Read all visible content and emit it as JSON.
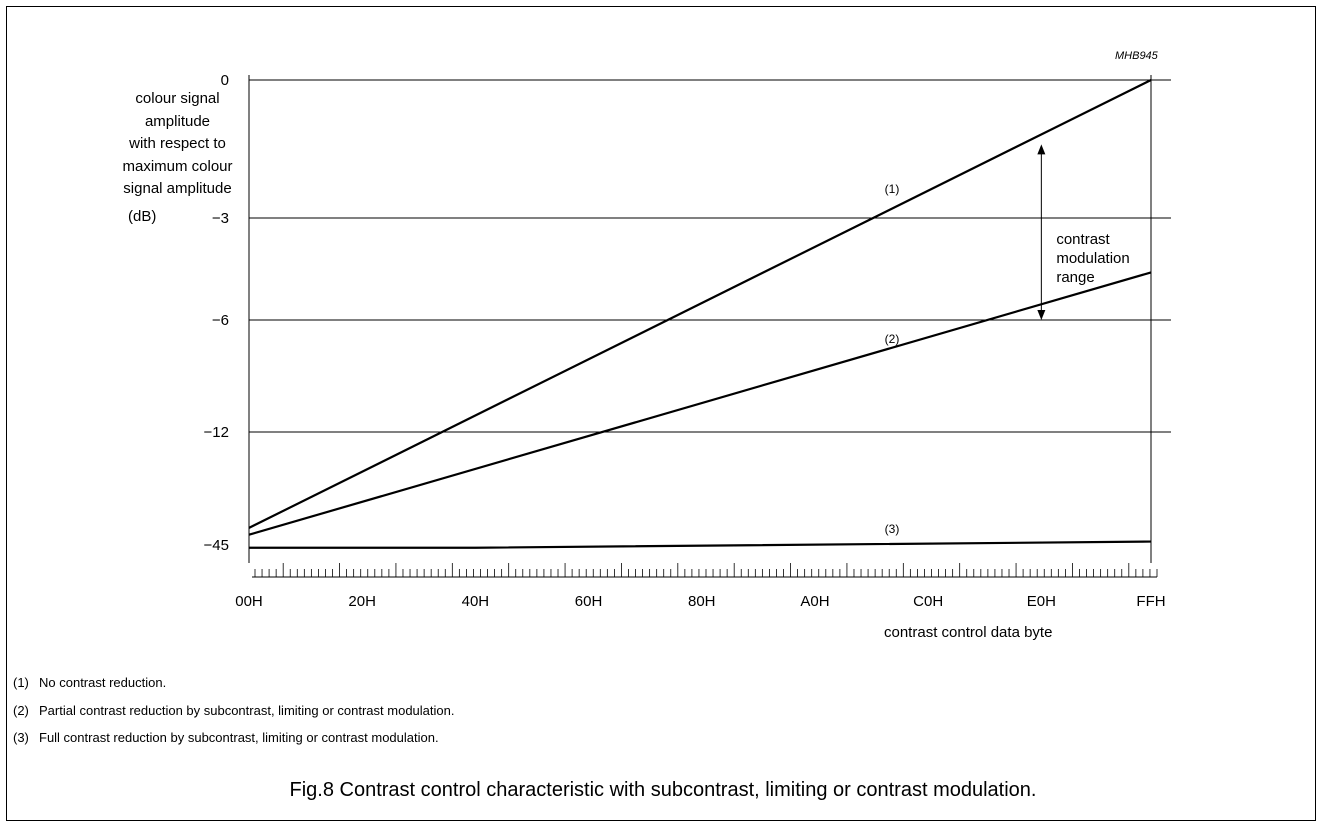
{
  "figure_id": "MHB945",
  "chart_data": {
    "type": "line",
    "xlabel": "contrast control data byte",
    "ylabel_lines": [
      "colour signal",
      "amplitude",
      "with respect to",
      "maximum colour",
      "signal amplitude"
    ],
    "ylabel_unit": "(dB)",
    "x_ticks": [
      "00H",
      "20H",
      "40H",
      "60H",
      "80H",
      "A0H",
      "C0H",
      "E0H",
      "FFH"
    ],
    "x_tick_values": [
      0,
      32,
      64,
      96,
      128,
      160,
      192,
      224,
      255
    ],
    "y_ticks": [
      "0",
      "−3",
      "−6",
      "−12",
      "−45"
    ],
    "y_tick_values": [
      0,
      -3,
      -6,
      -12,
      -45
    ],
    "y_scale": "non-linear (tick-indexed)",
    "grid": "horizontal lines at y ticks",
    "series": [
      {
        "name": "(1)",
        "points": [
          [
            0,
            -40
          ],
          [
            255,
            0
          ]
        ]
      },
      {
        "name": "(2)",
        "points": [
          [
            0,
            -42
          ],
          [
            255,
            -4.6
          ]
        ]
      },
      {
        "name": "(3)",
        "points": [
          [
            0,
            -45.8
          ],
          [
            64,
            -45.8
          ],
          [
            255,
            -44
          ]
        ]
      }
    ],
    "annotation": {
      "lines": [
        "contrast",
        "modulation",
        "range"
      ],
      "x": 224,
      "y_from": -1.4,
      "y_to": -6
    }
  },
  "notes": [
    {
      "num": "(1)",
      "text": "No contrast reduction."
    },
    {
      "num": "(2)",
      "text": "Partial contrast reduction by subcontrast, limiting or contrast modulation."
    },
    {
      "num": "(3)",
      "text": "Full contrast reduction by subcontrast, limiting or contrast modulation."
    }
  ],
  "caption": "Fig.8  Contrast control characteristic with subcontrast, limiting or contrast modulation."
}
